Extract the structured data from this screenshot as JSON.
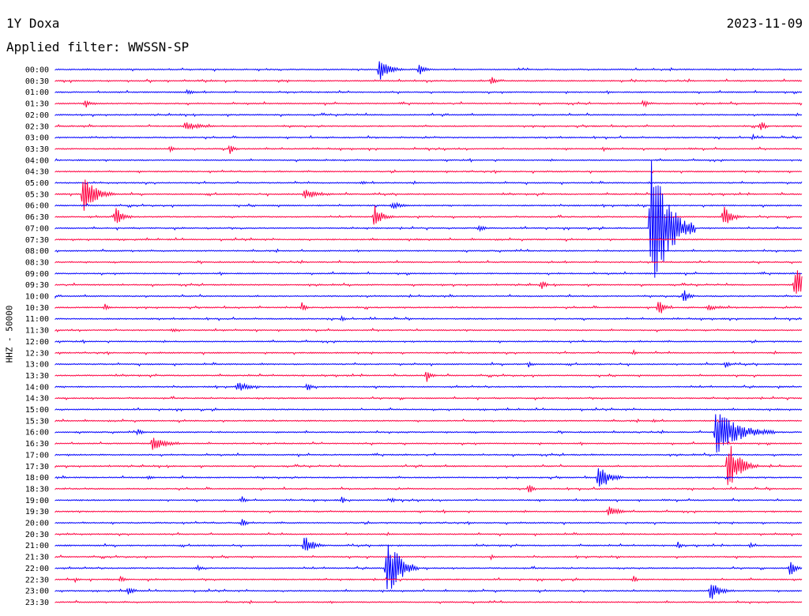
{
  "header": {
    "station": "1Y Doxa",
    "date": "2023-11-09",
    "filter": "Applied filter: WWSSN-SP"
  },
  "chart_data": {
    "type": "line",
    "title": "",
    "ylabel": "HHZ - 50000",
    "xlabel": "",
    "rows": [
      "00:00",
      "00:30",
      "01:00",
      "01:30",
      "02:00",
      "02:30",
      "03:00",
      "03:30",
      "04:00",
      "04:30",
      "05:00",
      "05:30",
      "06:00",
      "06:30",
      "07:00",
      "07:30",
      "08:00",
      "08:30",
      "09:00",
      "09:30",
      "10:00",
      "10:30",
      "11:00",
      "11:30",
      "12:00",
      "12:30",
      "13:00",
      "13:30",
      "14:00",
      "14:30",
      "15:00",
      "15:30",
      "16:00",
      "16:30",
      "17:00",
      "17:30",
      "18:00",
      "18:30",
      "19:00",
      "19:30",
      "20:00",
      "20:30",
      "21:00",
      "21:30",
      "22:00",
      "22:30",
      "23:00",
      "23:30"
    ],
    "colors": [
      "#0000ff",
      "#ff0040"
    ],
    "x_range_minutes": [
      0,
      30
    ],
    "events": [
      {
        "row": 0,
        "t": 13.0,
        "amp": 16,
        "dur": 1.0
      },
      {
        "row": 0,
        "t": 14.6,
        "amp": 8,
        "dur": 0.6
      },
      {
        "row": 1,
        "t": 17.5,
        "amp": 6,
        "dur": 0.6
      },
      {
        "row": 2,
        "t": 5.3,
        "amp": 4,
        "dur": 0.7
      },
      {
        "row": 3,
        "t": 1.2,
        "amp": 7,
        "dur": 0.5
      },
      {
        "row": 3,
        "t": 23.6,
        "amp": 5,
        "dur": 0.7
      },
      {
        "row": 5,
        "t": 5.2,
        "amp": 6,
        "dur": 1.6
      },
      {
        "row": 5,
        "t": 28.3,
        "amp": 8,
        "dur": 0.5
      },
      {
        "row": 6,
        "t": 28.0,
        "amp": 4,
        "dur": 0.3
      },
      {
        "row": 7,
        "t": 4.6,
        "amp": 5,
        "dur": 0.6
      },
      {
        "row": 7,
        "t": 7.0,
        "amp": 7,
        "dur": 0.5
      },
      {
        "row": 7,
        "t": 22.0,
        "amp": 3,
        "dur": 0.5
      },
      {
        "row": 10,
        "t": 12.3,
        "amp": 3,
        "dur": 0.6
      },
      {
        "row": 11,
        "t": 1.1,
        "amp": 26,
        "dur": 1.3
      },
      {
        "row": 11,
        "t": 10.0,
        "amp": 7,
        "dur": 1.6
      },
      {
        "row": 12,
        "t": 13.5,
        "amp": 5,
        "dur": 1.2
      },
      {
        "row": 13,
        "t": 2.4,
        "amp": 14,
        "dur": 0.8
      },
      {
        "row": 13,
        "t": 12.8,
        "amp": 16,
        "dur": 0.8
      },
      {
        "row": 13,
        "t": 26.8,
        "amp": 16,
        "dur": 0.9
      },
      {
        "row": 14,
        "t": 17.0,
        "amp": 5,
        "dur": 0.6
      },
      {
        "row": 14,
        "t": 23.9,
        "amp": 98,
        "dur": 1.8
      },
      {
        "row": 19,
        "t": 19.5,
        "amp": 7,
        "dur": 0.5
      },
      {
        "row": 19,
        "t": 29.7,
        "amp": 28,
        "dur": 0.9
      },
      {
        "row": 20,
        "t": 25.2,
        "amp": 10,
        "dur": 0.6
      },
      {
        "row": 21,
        "t": 2.0,
        "amp": 6,
        "dur": 0.4
      },
      {
        "row": 21,
        "t": 9.9,
        "amp": 7,
        "dur": 0.4
      },
      {
        "row": 21,
        "t": 24.2,
        "amp": 14,
        "dur": 0.6
      },
      {
        "row": 21,
        "t": 26.2,
        "amp": 4,
        "dur": 1.5
      },
      {
        "row": 22,
        "t": 11.5,
        "amp": 4,
        "dur": 0.4
      },
      {
        "row": 23,
        "t": 4.7,
        "amp": 4,
        "dur": 0.4
      },
      {
        "row": 25,
        "t": 23.2,
        "amp": 5,
        "dur": 0.3
      },
      {
        "row": 26,
        "t": 19.0,
        "amp": 4,
        "dur": 0.5
      },
      {
        "row": 26,
        "t": 26.9,
        "amp": 5,
        "dur": 0.5
      },
      {
        "row": 27,
        "t": 14.9,
        "amp": 9,
        "dur": 0.5
      },
      {
        "row": 28,
        "t": 7.3,
        "amp": 7,
        "dur": 1.2
      },
      {
        "row": 28,
        "t": 10.1,
        "amp": 6,
        "dur": 0.6
      },
      {
        "row": 31,
        "t": 24.0,
        "amp": 3,
        "dur": 0.6
      },
      {
        "row": 32,
        "t": 3.3,
        "amp": 5,
        "dur": 0.5
      },
      {
        "row": 32,
        "t": 26.5,
        "amp": 30,
        "dur": 2.4
      },
      {
        "row": 33,
        "t": 3.9,
        "amp": 10,
        "dur": 1.4
      },
      {
        "row": 35,
        "t": 27.0,
        "amp": 36,
        "dur": 1.2
      },
      {
        "row": 36,
        "t": 3.7,
        "amp": 3,
        "dur": 0.6
      },
      {
        "row": 36,
        "t": 21.8,
        "amp": 22,
        "dur": 1.0
      },
      {
        "row": 37,
        "t": 19.0,
        "amp": 9,
        "dur": 0.4
      },
      {
        "row": 38,
        "t": 7.5,
        "amp": 5,
        "dur": 0.4
      },
      {
        "row": 38,
        "t": 11.5,
        "amp": 5,
        "dur": 0.4
      },
      {
        "row": 38,
        "t": 13.5,
        "amp": 4,
        "dur": 0.4
      },
      {
        "row": 39,
        "t": 22.2,
        "amp": 8,
        "dur": 1.1
      },
      {
        "row": 40,
        "t": 7.5,
        "amp": 9,
        "dur": 0.4
      },
      {
        "row": 42,
        "t": 10.0,
        "amp": 16,
        "dur": 0.8
      },
      {
        "row": 42,
        "t": 25.0,
        "amp": 5,
        "dur": 0.4
      },
      {
        "row": 42,
        "t": 27.9,
        "amp": 4,
        "dur": 0.3
      },
      {
        "row": 43,
        "t": 17.5,
        "amp": 4,
        "dur": 0.3
      },
      {
        "row": 44,
        "t": 5.7,
        "amp": 4,
        "dur": 0.5
      },
      {
        "row": 44,
        "t": 13.3,
        "amp": 48,
        "dur": 1.3
      },
      {
        "row": 44,
        "t": 29.5,
        "amp": 11,
        "dur": 0.6
      },
      {
        "row": 45,
        "t": 0.8,
        "amp": 4,
        "dur": 0.4
      },
      {
        "row": 45,
        "t": 2.6,
        "amp": 6,
        "dur": 0.4
      },
      {
        "row": 45,
        "t": 23.2,
        "amp": 5,
        "dur": 0.4
      },
      {
        "row": 46,
        "t": 2.9,
        "amp": 6,
        "dur": 0.7
      },
      {
        "row": 46,
        "t": 26.3,
        "amp": 14,
        "dur": 1.0
      }
    ]
  }
}
